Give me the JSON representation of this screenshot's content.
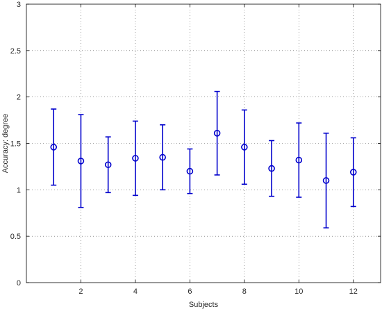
{
  "chart_data": {
    "type": "scatter",
    "title": "",
    "xlabel": "Subjects",
    "ylabel": "Accuracy: degree",
    "xlim": [
      0,
      13
    ],
    "ylim": [
      0,
      3
    ],
    "xticks": [
      2,
      4,
      6,
      8,
      10,
      12
    ],
    "xtick_labels": [
      "2",
      "4",
      "6",
      "8",
      "10",
      "12"
    ],
    "yticks": [
      0,
      0.5,
      1,
      1.5,
      2,
      2.5,
      3
    ],
    "ytick_labels": [
      "0",
      "0.5",
      "1",
      "1.5",
      "2",
      "2.5",
      "3"
    ],
    "grid": true,
    "legend": "none",
    "marker": "circle",
    "color": "#0000cc",
    "series": [
      {
        "x": [
          1,
          2,
          3,
          4,
          5,
          6,
          7,
          8,
          9,
          10,
          11,
          12
        ],
        "y": [
          1.46,
          1.31,
          1.27,
          1.34,
          1.35,
          1.2,
          1.61,
          1.46,
          1.23,
          1.32,
          1.1,
          1.19
        ],
        "lower": [
          1.05,
          0.81,
          0.97,
          0.94,
          1.0,
          0.96,
          1.16,
          1.06,
          0.93,
          0.92,
          0.59,
          0.82
        ],
        "upper": [
          1.87,
          1.81,
          1.57,
          1.74,
          1.7,
          1.44,
          2.06,
          1.86,
          1.53,
          1.72,
          1.61,
          1.56
        ]
      }
    ]
  }
}
